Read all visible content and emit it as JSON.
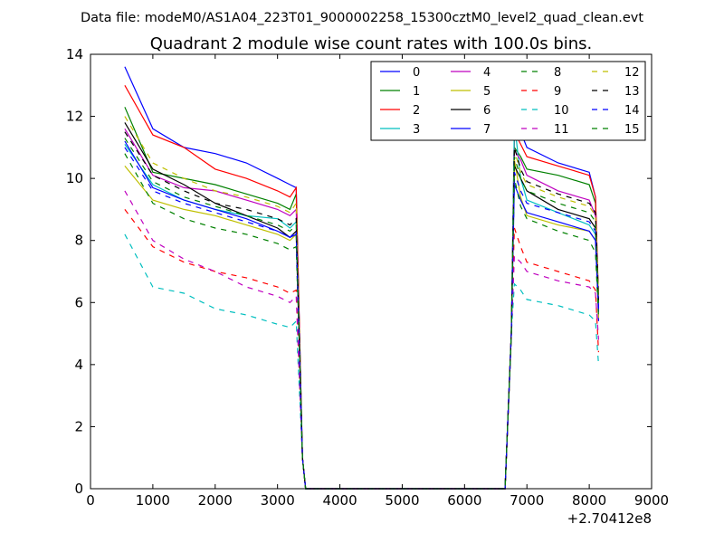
{
  "supertitle": "Data file: modeM0/AS1A04_223T01_9000002258_15300cztM0_level2_quad_clean.evt",
  "chart_data": {
    "type": "line",
    "title": "Quadrant 2 module wise count rates with 100.0s bins.",
    "xlabel": "",
    "ylabel": "",
    "x_offset_label": "+2.70412e8",
    "xlim": [
      0,
      9000
    ],
    "ylim": [
      0,
      14
    ],
    "xticks": [
      0,
      1000,
      2000,
      3000,
      4000,
      5000,
      6000,
      7000,
      8000,
      9000
    ],
    "yticks": [
      0,
      2,
      4,
      6,
      8,
      10,
      12,
      14
    ],
    "grid": false,
    "legend_position": "top-right",
    "legend_columns": 4,
    "series": [
      {
        "name": "0",
        "color": "#0000ff",
        "dash": "solid",
        "x": [
          550,
          1000,
          1500,
          2000,
          2500,
          3000,
          3200,
          3300,
          3400,
          3450,
          6650,
          6750,
          6800,
          6900,
          7000,
          7500,
          8000,
          8100,
          8150
        ],
        "y": [
          13.6,
          11.6,
          11.0,
          10.8,
          10.5,
          10.0,
          9.8,
          9.7,
          1.0,
          0.0,
          0.0,
          5.0,
          11.6,
          11.5,
          11.0,
          10.5,
          10.2,
          9.4,
          5.4
        ]
      },
      {
        "name": "1",
        "color": "#008000",
        "dash": "solid",
        "x": [
          550,
          1000,
          1500,
          2000,
          2500,
          3000,
          3200,
          3300,
          3400,
          3450,
          6650,
          6750,
          6800,
          6900,
          7000,
          7500,
          8000,
          8100,
          8150
        ],
        "y": [
          12.3,
          10.2,
          10.0,
          9.8,
          9.5,
          9.2,
          9.0,
          9.5,
          1.0,
          0.0,
          0.0,
          5.0,
          11.0,
          10.7,
          10.3,
          10.1,
          9.8,
          9.2,
          6.0
        ]
      },
      {
        "name": "2",
        "color": "#ff0000",
        "dash": "solid",
        "x": [
          550,
          1000,
          1500,
          2000,
          2500,
          3000,
          3200,
          3300,
          3400,
          3450,
          6650,
          6750,
          6800,
          6900,
          7000,
          7500,
          8000,
          8100,
          8150
        ],
        "y": [
          13.0,
          11.4,
          11.0,
          10.3,
          10.0,
          9.6,
          9.4,
          9.7,
          1.0,
          0.0,
          0.0,
          5.0,
          11.5,
          11.1,
          10.7,
          10.4,
          10.1,
          9.4,
          6.1
        ]
      },
      {
        "name": "3",
        "color": "#00bfbf",
        "dash": "solid",
        "x": [
          550,
          1000,
          1500,
          2000,
          2500,
          3000,
          3200,
          3300,
          3400,
          3450,
          6650,
          6750,
          6800,
          6900,
          7000,
          7500,
          8000,
          8100,
          8150
        ],
        "y": [
          11.1,
          9.8,
          9.3,
          9.0,
          8.8,
          8.7,
          8.4,
          8.6,
          1.0,
          0.0,
          0.0,
          5.0,
          11.8,
          10.0,
          9.3,
          8.9,
          8.5,
          8.2,
          5.9
        ]
      },
      {
        "name": "4",
        "color": "#bf00bf",
        "dash": "solid",
        "x": [
          550,
          1000,
          1500,
          2000,
          2500,
          3000,
          3200,
          3300,
          3400,
          3450,
          6650,
          6750,
          6800,
          6900,
          7000,
          7500,
          8000,
          8100,
          8150
        ],
        "y": [
          11.6,
          10.1,
          9.7,
          9.6,
          9.3,
          9.0,
          8.8,
          9.0,
          1.0,
          0.0,
          0.0,
          5.0,
          10.9,
          10.6,
          10.1,
          9.6,
          9.3,
          8.8,
          5.8
        ]
      },
      {
        "name": "5",
        "color": "#bfbf00",
        "dash": "solid",
        "x": [
          550,
          1000,
          1500,
          2000,
          2500,
          3000,
          3200,
          3300,
          3400,
          3450,
          6650,
          6750,
          6800,
          6900,
          7000,
          7500,
          8000,
          8100,
          8150
        ],
        "y": [
          10.4,
          9.3,
          9.0,
          8.8,
          8.5,
          8.2,
          8.0,
          8.2,
          1.0,
          0.0,
          0.0,
          5.0,
          10.6,
          9.4,
          8.8,
          8.5,
          8.3,
          8.0,
          5.5
        ]
      },
      {
        "name": "6",
        "color": "#000000",
        "dash": "solid",
        "x": [
          550,
          1000,
          1500,
          2000,
          2500,
          3000,
          3200,
          3300,
          3400,
          3450,
          6650,
          6750,
          6800,
          6900,
          7000,
          7500,
          8000,
          8100,
          8150
        ],
        "y": [
          11.8,
          10.3,
          9.8,
          9.2,
          8.8,
          8.4,
          8.1,
          8.3,
          1.0,
          0.0,
          0.0,
          5.0,
          10.4,
          10.0,
          9.6,
          9.0,
          8.7,
          8.4,
          6.0
        ]
      },
      {
        "name": "7",
        "color": "#0000ff",
        "dash": "solid",
        "x": [
          550,
          1000,
          1500,
          2000,
          2500,
          3000,
          3200,
          3300,
          3400,
          3450,
          6650,
          6750,
          6800,
          6900,
          7000,
          7500,
          8000,
          8100,
          8150
        ],
        "y": [
          11.2,
          9.7,
          9.3,
          9.0,
          8.7,
          8.3,
          8.1,
          8.2,
          1.0,
          0.0,
          0.0,
          5.0,
          9.8,
          9.3,
          8.9,
          8.6,
          8.3,
          8.0,
          5.7
        ]
      },
      {
        "name": "8",
        "color": "#008000",
        "dash": "dashed",
        "x": [
          550,
          1000,
          1500,
          2000,
          2500,
          3000,
          3200,
          3300,
          3400,
          3450,
          6650,
          6750,
          6800,
          6900,
          7000,
          7500,
          8000,
          8100,
          8150
        ],
        "y": [
          10.8,
          9.2,
          8.7,
          8.4,
          8.2,
          7.9,
          7.7,
          7.8,
          1.0,
          0.0,
          0.0,
          5.0,
          10.0,
          9.1,
          8.7,
          8.3,
          8.0,
          7.6,
          5.5
        ]
      },
      {
        "name": "9",
        "color": "#ff0000",
        "dash": "dashed",
        "x": [
          550,
          1000,
          1500,
          2000,
          2500,
          3000,
          3200,
          3300,
          3400,
          3450,
          6650,
          6750,
          6800,
          6900,
          7000,
          7500,
          8000,
          8100,
          8150
        ],
        "y": [
          9.0,
          7.8,
          7.3,
          7.0,
          6.8,
          6.5,
          6.3,
          6.4,
          1.0,
          0.0,
          0.0,
          5.0,
          8.4,
          7.8,
          7.3,
          7.0,
          6.7,
          6.4,
          4.4
        ]
      },
      {
        "name": "10",
        "color": "#00bfbf",
        "dash": "dashed",
        "x": [
          550,
          1000,
          1500,
          2000,
          2500,
          3000,
          3200,
          3300,
          3400,
          3450,
          6650,
          6750,
          6800,
          6900,
          7000,
          7500,
          8000,
          8100,
          8150
        ],
        "y": [
          8.2,
          6.5,
          6.3,
          5.8,
          5.6,
          5.3,
          5.2,
          5.4,
          1.0,
          0.0,
          0.0,
          5.0,
          6.6,
          6.4,
          6.1,
          5.9,
          5.6,
          5.4,
          4.0
        ]
      },
      {
        "name": "11",
        "color": "#bf00bf",
        "dash": "dashed",
        "x": [
          550,
          1000,
          1500,
          2000,
          2500,
          3000,
          3200,
          3300,
          3400,
          3450,
          6650,
          6750,
          6800,
          6900,
          7000,
          7500,
          8000,
          8100,
          8150
        ],
        "y": [
          9.6,
          8.0,
          7.4,
          7.0,
          6.5,
          6.2,
          6.0,
          6.2,
          1.0,
          0.0,
          0.0,
          5.0,
          7.5,
          7.3,
          7.0,
          6.7,
          6.5,
          6.3,
          4.8
        ]
      },
      {
        "name": "12",
        "color": "#bfbf00",
        "dash": "dashed",
        "x": [
          550,
          1000,
          1500,
          2000,
          2500,
          3000,
          3200,
          3300,
          3400,
          3450,
          6650,
          6750,
          6800,
          6900,
          7000,
          7500,
          8000,
          8100,
          8150
        ],
        "y": [
          12.0,
          10.5,
          10.0,
          9.6,
          9.4,
          9.1,
          8.9,
          9.2,
          1.0,
          0.0,
          0.0,
          5.0,
          10.9,
          10.2,
          9.8,
          9.4,
          9.1,
          8.8,
          6.2
        ]
      },
      {
        "name": "13",
        "color": "#000000",
        "dash": "dashed",
        "x": [
          550,
          1000,
          1500,
          2000,
          2500,
          3000,
          3200,
          3300,
          3400,
          3450,
          6650,
          6750,
          6800,
          6900,
          7000,
          7500,
          8000,
          8100,
          8150
        ],
        "y": [
          11.5,
          10.1,
          9.6,
          9.2,
          9.0,
          8.7,
          8.5,
          8.7,
          1.0,
          0.0,
          0.0,
          5.0,
          11.0,
          10.3,
          9.9,
          9.5,
          9.2,
          8.9,
          6.1
        ]
      },
      {
        "name": "14",
        "color": "#0000ff",
        "dash": "dashed",
        "x": [
          550,
          1000,
          1500,
          2000,
          2500,
          3000,
          3200,
          3300,
          3400,
          3450,
          6650,
          6750,
          6800,
          6900,
          7000,
          7500,
          8000,
          8100,
          8150
        ],
        "y": [
          11.0,
          9.6,
          9.2,
          8.9,
          8.6,
          8.3,
          8.1,
          8.3,
          1.0,
          0.0,
          0.0,
          5.0,
          10.2,
          9.6,
          9.2,
          8.9,
          8.6,
          8.3,
          5.8
        ]
      },
      {
        "name": "15",
        "color": "#008000",
        "dash": "dashed",
        "x": [
          550,
          1000,
          1500,
          2000,
          2500,
          3000,
          3200,
          3300,
          3400,
          3450,
          6650,
          6750,
          6800,
          6900,
          7000,
          7500,
          8000,
          8100,
          8150
        ],
        "y": [
          11.3,
          9.9,
          9.4,
          9.1,
          8.8,
          8.5,
          8.3,
          8.5,
          1.0,
          0.0,
          0.0,
          5.0,
          10.7,
          10.0,
          9.6,
          9.2,
          8.9,
          8.6,
          6.0
        ]
      }
    ]
  }
}
